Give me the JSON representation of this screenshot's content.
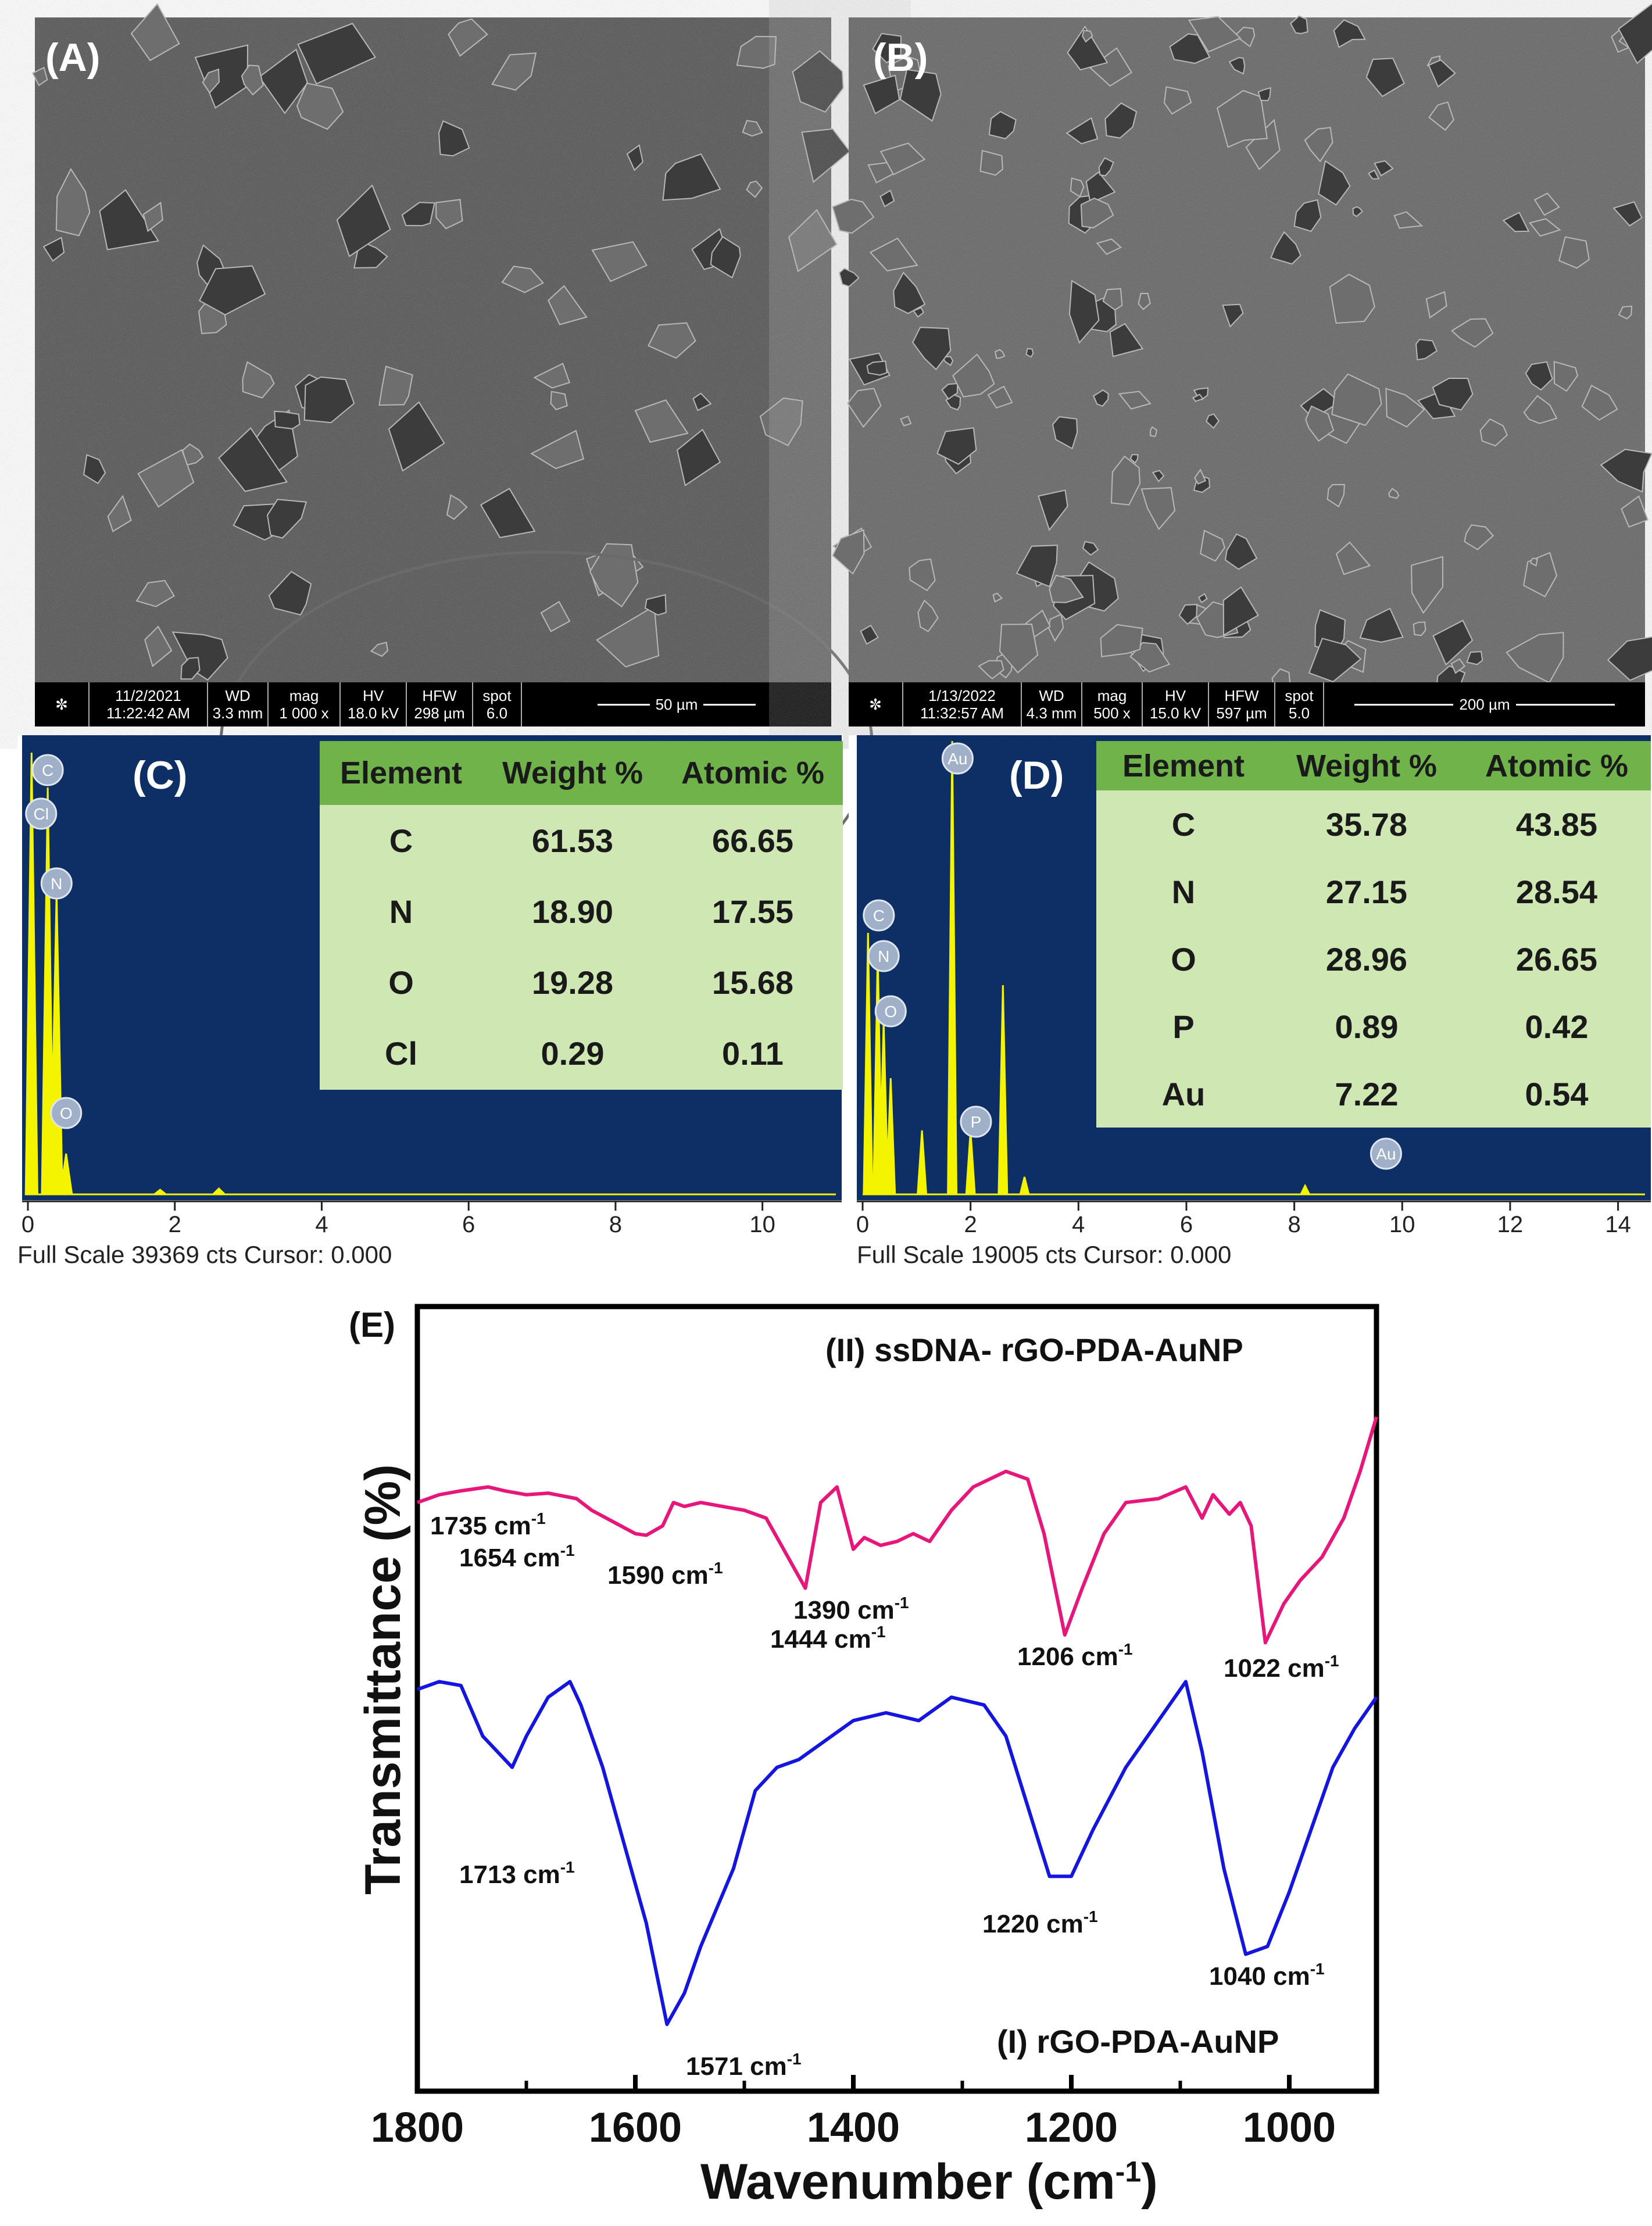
{
  "panels": {
    "A": {
      "label": "(A)",
      "databar": {
        "date": "11/2/2021",
        "time": "11:22:42 AM",
        "wd_label": "WD",
        "wd": "3.3 mm",
        "mag_label": "mag",
        "mag": "1 000 x",
        "hv_label": "HV",
        "hv": "18.0 kV",
        "hfw_label": "HFW",
        "hfw": "298 µm",
        "spot_label": "spot",
        "spot": "6.0",
        "scale": "50 µm"
      }
    },
    "B": {
      "label": "(B)",
      "databar": {
        "date": "1/13/2022",
        "time": "11:32:57 AM",
        "wd_label": "WD",
        "wd": "4.3 mm",
        "mag_label": "mag",
        "mag": "500 x",
        "hv_label": "HV",
        "hv": "15.0 kV",
        "hfw_label": "HFW",
        "hfw": "597 µm",
        "spot_label": "spot",
        "spot": "5.0",
        "scale": "200 µm"
      }
    },
    "C": {
      "label": "(C)",
      "table": {
        "headers": [
          "Element",
          "Weight %",
          "Atomic %"
        ],
        "rows": [
          [
            "C",
            "61.53",
            "66.65"
          ],
          [
            "N",
            "18.90",
            "17.55"
          ],
          [
            "O",
            "19.28",
            "15.68"
          ],
          [
            "Cl",
            "0.29",
            "0.11"
          ]
        ]
      },
      "peaks": [
        "C",
        "Cl",
        "N",
        "O"
      ],
      "xticks": [
        "0",
        "2",
        "4",
        "6",
        "8",
        "10"
      ],
      "footer": "Full Scale 39369 cts Cursor: 0.000"
    },
    "D": {
      "label": "(D)",
      "table": {
        "headers": [
          "Element",
          "Weight %",
          "Atomic %"
        ],
        "rows": [
          [
            "C",
            "35.78",
            "43.85"
          ],
          [
            "N",
            "27.15",
            "28.54"
          ],
          [
            "O",
            "28.96",
            "26.65"
          ],
          [
            "P",
            "0.89",
            "0.42"
          ],
          [
            "Au",
            "7.22",
            "0.54"
          ]
        ]
      },
      "peaks": [
        "Au",
        "C",
        "N",
        "O",
        "P",
        "Au"
      ],
      "xticks": [
        "0",
        "2",
        "4",
        "6",
        "8",
        "10",
        "12",
        "14"
      ],
      "footer": "Full Scale 19005 cts Cursor: 0.000"
    },
    "E": {
      "label": "(E)",
      "ylabel": "Transmittance (%)",
      "xlabel": "Wavenumber (cm",
      "xlabel_sup": "-1",
      "xlabel_end": ")",
      "series_II_label": "(II) ssDNA- rGO-PDA-AuNP",
      "series_I_label": "(I) rGO-PDA-AuNP",
      "cm_unit": "cm",
      "cm_sup": "-1",
      "annotations_II": [
        "1735",
        "1654",
        "1590",
        "1444",
        "1390",
        "1206",
        "1022"
      ],
      "annotations_I": [
        "1713",
        "1571",
        "1220",
        "1040"
      ]
    }
  },
  "chart_data": {
    "type": "line",
    "xlabel": "Wavenumber (cm-1)",
    "ylabel": "Transmittance (%)",
    "xlim": [
      1800,
      920
    ],
    "xticks": [
      1800,
      1600,
      1400,
      1200,
      1000
    ],
    "series": [
      {
        "name": "(II) ssDNA- rGO-PDA-AuNP",
        "color": "#e8157a",
        "x": [
          1800,
          1780,
          1760,
          1735,
          1720,
          1700,
          1680,
          1654,
          1640,
          1620,
          1600,
          1590,
          1575,
          1565,
          1555,
          1540,
          1520,
          1500,
          1480,
          1460,
          1444,
          1430,
          1415,
          1400,
          1390,
          1375,
          1360,
          1345,
          1330,
          1310,
          1290,
          1260,
          1240,
          1225,
          1206,
          1190,
          1170,
          1150,
          1120,
          1095,
          1080,
          1070,
          1055,
          1045,
          1035,
          1022,
          1005,
          990,
          970,
          950,
          935,
          920
        ],
        "y": [
          72,
          73,
          73.5,
          74,
          73.5,
          73,
          73.2,
          72.5,
          71,
          69.5,
          68,
          67.8,
          69,
          72,
          71.5,
          72,
          71.5,
          71,
          70,
          65,
          61,
          72,
          74,
          66,
          67.5,
          66.5,
          67,
          68,
          67,
          71,
          74,
          76,
          75,
          68,
          55,
          61,
          68,
          72,
          72.5,
          74,
          70,
          73,
          70.5,
          72,
          69,
          54,
          59,
          62,
          65,
          70,
          76,
          83
        ]
      },
      {
        "name": "(I) rGO-PDA-AuNP",
        "color": "#1515e0",
        "x": [
          1800,
          1780,
          1760,
          1740,
          1713,
          1700,
          1680,
          1660,
          1650,
          1630,
          1610,
          1590,
          1571,
          1555,
          1540,
          1525,
          1510,
          1490,
          1470,
          1450,
          1420,
          1400,
          1370,
          1340,
          1310,
          1280,
          1260,
          1240,
          1220,
          1200,
          1180,
          1150,
          1120,
          1095,
          1080,
          1060,
          1040,
          1020,
          1000,
          980,
          960,
          940,
          920
        ],
        "y": [
          48,
          49,
          48.5,
          42,
          38,
          42,
          47,
          49,
          46,
          38,
          28,
          18,
          5,
          9,
          15,
          20,
          25,
          35,
          38,
          39,
          42,
          44,
          45,
          44,
          47,
          46,
          42,
          33,
          24,
          24,
          30,
          38,
          44,
          49,
          40,
          25,
          14,
          15,
          22,
          30,
          38,
          43,
          47
        ]
      }
    ],
    "annotations": [
      "1735 cm-1",
      "1654 cm-1",
      "1590 cm-1",
      "1444 cm-1",
      "1390 cm-1",
      "1206 cm-1",
      "1022 cm-1",
      "1713 cm-1",
      "1571 cm-1",
      "1220 cm-1",
      "1040 cm-1"
    ]
  }
}
